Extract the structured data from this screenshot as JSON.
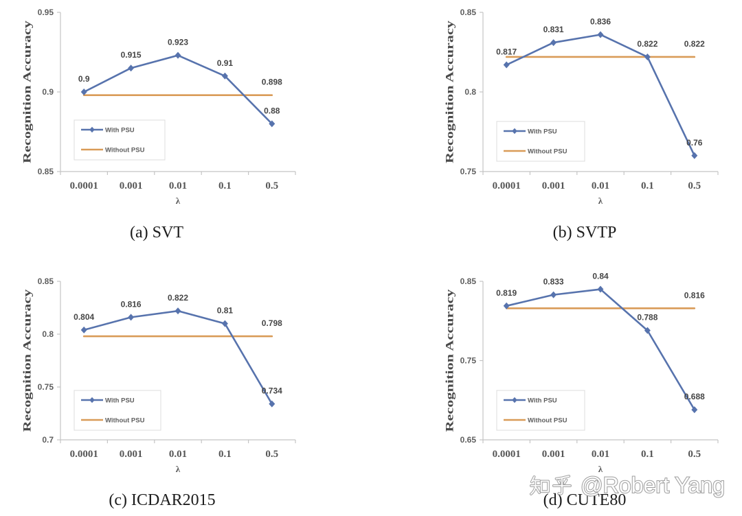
{
  "chart_data": [
    {
      "type": "line",
      "caption": "(a) SVT",
      "xlabel": "λ",
      "ylabel": "Recognition Accuracy",
      "categories": [
        "0.0001",
        "0.001",
        "0.01",
        "0.1",
        "0.5"
      ],
      "ylim": [
        0.85,
        0.95
      ],
      "yticks": [
        0.85,
        0.9,
        0.95
      ],
      "grid": false,
      "legend": "lower-left",
      "series": [
        {
          "name": "With PSU",
          "values": [
            0.9,
            0.915,
            0.923,
            0.91,
            0.88
          ],
          "color": "#5773ad",
          "marker": "diamond",
          "data_labels": "all"
        },
        {
          "name": "Without PSU",
          "values": [
            0.898,
            0.898,
            0.898,
            0.898,
            0.898
          ],
          "color": "#d99b57",
          "marker": "none",
          "data_labels": "last"
        }
      ]
    },
    {
      "type": "line",
      "caption": "(b) SVTP",
      "xlabel": "λ",
      "ylabel": "Recognition Accuracy",
      "categories": [
        "0.0001",
        "0.001",
        "0.01",
        "0.1",
        "0.5"
      ],
      "ylim": [
        0.75,
        0.85
      ],
      "yticks": [
        0.75,
        0.8,
        0.85
      ],
      "grid": false,
      "legend": "lower-left",
      "series": [
        {
          "name": "With PSU",
          "values": [
            0.817,
            0.831,
            0.836,
            0.822,
            0.76
          ],
          "color": "#5773ad",
          "marker": "diamond",
          "data_labels": "all"
        },
        {
          "name": "Without PSU",
          "values": [
            0.822,
            0.822,
            0.822,
            0.822,
            0.822
          ],
          "color": "#d99b57",
          "marker": "none",
          "data_labels": "last"
        }
      ]
    },
    {
      "type": "line",
      "caption": "(c) ICDAR2015",
      "xlabel": "λ",
      "ylabel": "Recognition Accuracy",
      "categories": [
        "0.0001",
        "0.001",
        "0.01",
        "0.1",
        "0.5"
      ],
      "ylim": [
        0.7,
        0.85
      ],
      "yticks": [
        0.7,
        0.75,
        0.8,
        0.85
      ],
      "grid": false,
      "legend": "lower-left",
      "series": [
        {
          "name": "With PSU",
          "values": [
            0.804,
            0.816,
            0.822,
            0.81,
            0.734
          ],
          "color": "#5773ad",
          "marker": "diamond",
          "data_labels": "all"
        },
        {
          "name": "Without PSU",
          "values": [
            0.798,
            0.798,
            0.798,
            0.798,
            0.798
          ],
          "color": "#d99b57",
          "marker": "none",
          "data_labels": "last"
        }
      ]
    },
    {
      "type": "line",
      "caption": "(d) CUTE80",
      "xlabel": "λ",
      "ylabel": "Recognition Accuracy",
      "categories": [
        "0.0001",
        "0.001",
        "0.01",
        "0.1",
        "0.5"
      ],
      "ylim": [
        0.65,
        0.85
      ],
      "yticks": [
        0.65,
        0.75,
        0.85
      ],
      "grid": false,
      "legend": "lower-left",
      "series": [
        {
          "name": "With PSU",
          "values": [
            0.819,
            0.833,
            0.84,
            0.788,
            0.688
          ],
          "color": "#5773ad",
          "marker": "diamond",
          "data_labels": "all"
        },
        {
          "name": "Without PSU",
          "values": [
            0.816,
            0.816,
            0.816,
            0.816,
            0.816
          ],
          "color": "#d99b57",
          "marker": "none",
          "data_labels": "last"
        }
      ]
    }
  ],
  "watermark": {
    "logo": "知乎",
    "handle": "@Robert Yang"
  }
}
